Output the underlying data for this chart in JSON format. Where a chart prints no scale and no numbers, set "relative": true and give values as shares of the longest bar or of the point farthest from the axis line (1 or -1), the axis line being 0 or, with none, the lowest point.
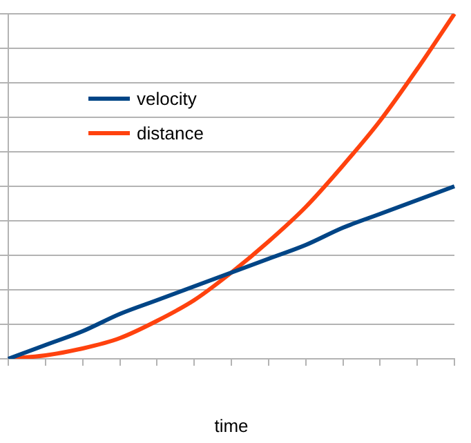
{
  "chart_data": {
    "type": "line",
    "xlabel": "time",
    "relative": true,
    "grid": "y",
    "legend": "top left",
    "marker": "none",
    "line_style": "solid",
    "categories": [
      null,
      null,
      null,
      null,
      null,
      null,
      null,
      null,
      null,
      null,
      null,
      null,
      null
    ],
    "series": [
      {
        "name": "velocity",
        "color": "#004586",
        "values": [
          0,
          0.04,
          0.08,
          0.13,
          0.17,
          0.21,
          0.25,
          0.29,
          0.33,
          0.38,
          0.42,
          0.46,
          0.5
        ]
      },
      {
        "name": "distance",
        "color": "#ff420e",
        "values": [
          0,
          0.01,
          0.03,
          0.06,
          0.11,
          0.17,
          0.25,
          0.34,
          0.44,
          0.56,
          0.69,
          0.84,
          1
        ]
      }
    ]
  }
}
